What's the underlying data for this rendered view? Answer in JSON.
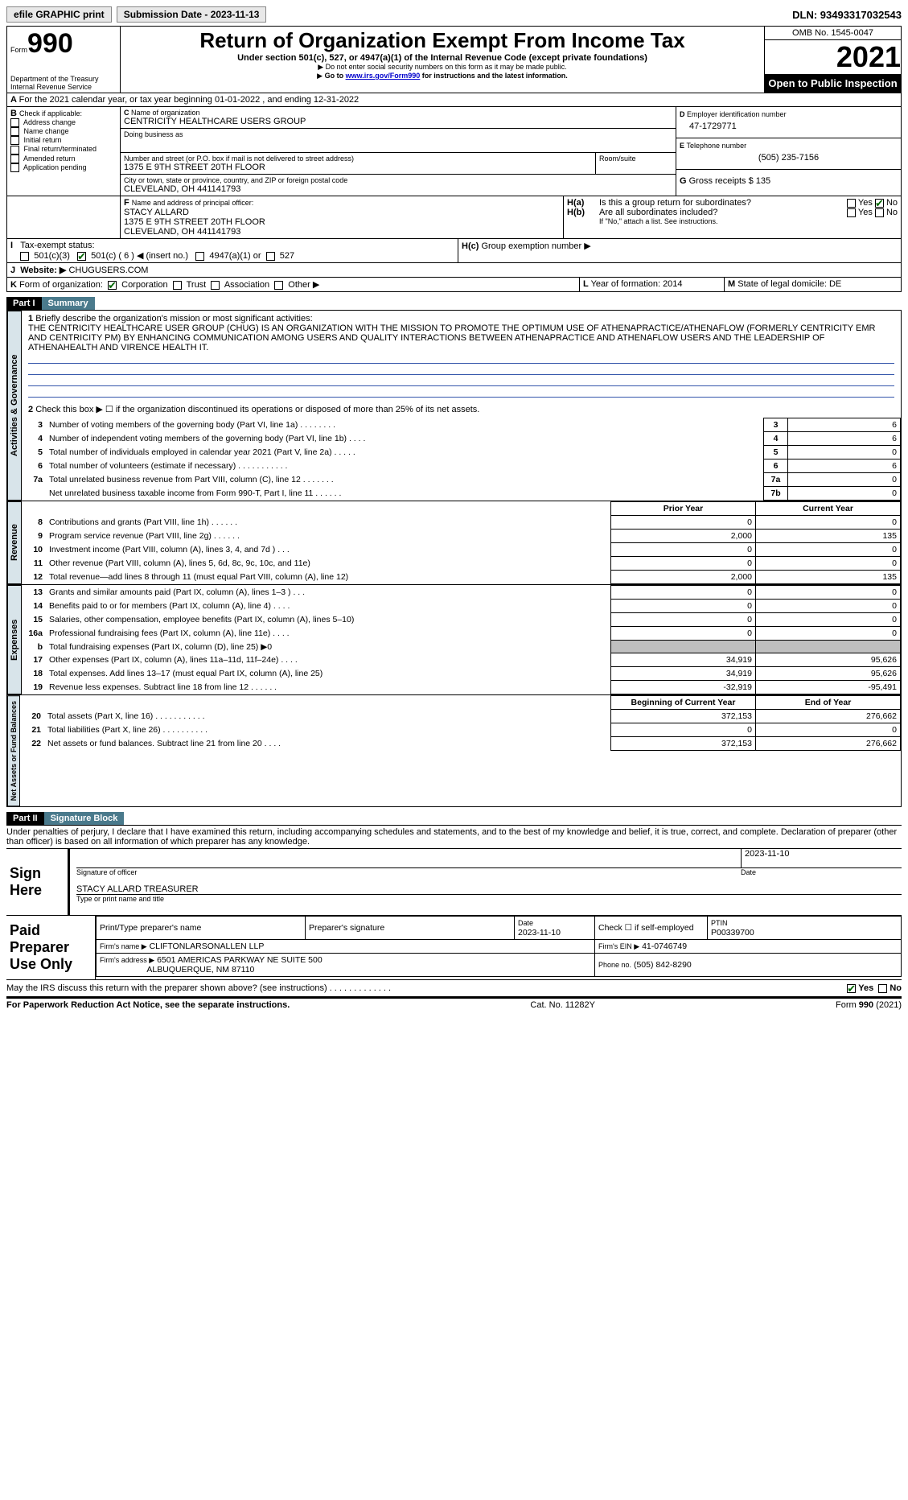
{
  "top": {
    "efile": "efile GRAPHIC print",
    "submission": "Submission Date - 2023-11-13",
    "dln": "DLN: 93493317032543"
  },
  "header": {
    "form_label": "Form",
    "form_no": "990",
    "dept": "Department of the Treasury",
    "irs": "Internal Revenue Service",
    "title": "Return of Organization Exempt From Income Tax",
    "subtitle": "Under section 501(c), 527, or 4947(a)(1) of the Internal Revenue Code (except private foundations)",
    "note1": "Do not enter social security numbers on this form as it may be made public.",
    "note2_pre": "Go to ",
    "note2_link": "www.irs.gov/Form990",
    "note2_post": " for instructions and the latest information.",
    "omb": "OMB No. 1545-0047",
    "year": "2021",
    "inspection": "Open to Public Inspection"
  },
  "A": {
    "line": "For the 2021 calendar year, or tax year beginning 01-01-2022    , and ending 12-31-2022"
  },
  "B": {
    "title": "Check if applicable:",
    "opts": [
      "Address change",
      "Name change",
      "Initial return",
      "Final return/terminated",
      "Amended return",
      "Application pending"
    ]
  },
  "C": {
    "label_name": "Name of organization",
    "name": "CENTRICITY HEALTHCARE USERS GROUP",
    "dba_label": "Doing business as",
    "dba": "",
    "addr_label": "Number and street (or P.O. box if mail is not delivered to street address)",
    "room_label": "Room/suite",
    "addr": "1375 E 9TH STREET 20TH FLOOR",
    "city_label": "City or town, state or province, country, and ZIP or foreign postal code",
    "city": "CLEVELAND, OH  441141793"
  },
  "D": {
    "label": "Employer identification number",
    "val": "47-1729771"
  },
  "E": {
    "label": "Telephone number",
    "val": "(505) 235-7156"
  },
  "G": {
    "label": "Gross receipts $",
    "val": "135"
  },
  "F": {
    "label": "Name and address of principal officer:",
    "name": "STACY ALLARD",
    "addr1": "1375 E 9TH STREET 20TH FLOOR",
    "addr2": "CLEVELAND, OH  441141793"
  },
  "H": {
    "a": "Is this a group return for subordinates?",
    "b": "Are all subordinates included?",
    "b_note": "If \"No,\" attach a list. See instructions.",
    "c": "Group exemption number ▶",
    "yes": "Yes",
    "no": "No"
  },
  "I": {
    "label": "Tax-exempt status:",
    "o1": "501(c)(3)",
    "o2": "501(c) ( 6 ) ◀ (insert no.)",
    "o3": "4947(a)(1) or",
    "o4": "527"
  },
  "J": {
    "label": "Website: ▶",
    "val": "CHUGUSERS.COM"
  },
  "K": {
    "label": "Form of organization:",
    "o1": "Corporation",
    "o2": "Trust",
    "o3": "Association",
    "o4": "Other ▶"
  },
  "L": {
    "label": "Year of formation:",
    "val": "2014"
  },
  "M": {
    "label": "State of legal domicile:",
    "val": "DE"
  },
  "partI": {
    "header": "Part I",
    "title": "Summary",
    "q1_label": "1",
    "q1_text": "Briefly describe the organization's mission or most significant activities:",
    "q1_body": "THE CENTRICITY HEALTHCARE USER GROUP (CHUG) IS AN ORGANIZATION WITH THE MISSION TO PROMOTE THE OPTIMUM USE OF ATHENAPRACTICE/ATHENAFLOW (FORMERLY CENTRICITY EMR AND CENTRICITY PM) BY ENHANCING COMMUNICATION AMONG USERS AND QUALITY INTERACTIONS BETWEEN ATHENAPRACTICE AND ATHENAFLOW USERS AND THE LEADERSHIP OF ATHENAHEALTH AND VIRENCE HEALTH IT.",
    "q2": "Check this box ▶ ☐  if the organization discontinued its operations or disposed of more than 25% of its net assets.",
    "gov_rows": [
      {
        "n": "3",
        "t": "Number of voting members of the governing body (Part VI, line 1a)   .    .    .    .    .    .    .    .",
        "box": "3",
        "v": "6"
      },
      {
        "n": "4",
        "t": "Number of independent voting members of the governing body (Part VI, line 1b)    .    .    .    .",
        "box": "4",
        "v": "6"
      },
      {
        "n": "5",
        "t": "Total number of individuals employed in calendar year 2021 (Part V, line 2a)    .    .    .    .    .",
        "box": "5",
        "v": "0"
      },
      {
        "n": "6",
        "t": "Total number of volunteers (estimate if necessary)    .    .    .    .    .    .    .    .    .    .    .",
        "box": "6",
        "v": "6"
      },
      {
        "n": "7a",
        "t": "Total unrelated business revenue from Part VIII, column (C), line 12    .    .    .    .    .    .    .",
        "box": "7a",
        "v": "0"
      },
      {
        "n": "",
        "t": "Net unrelated business taxable income from Form 990-T, Part I, line 11    .    .    .    .    .    .",
        "box": "7b",
        "v": "0"
      }
    ],
    "col_prior": "Prior Year",
    "col_current": "Current Year",
    "rev_rows": [
      {
        "n": "8",
        "t": "Contributions and grants (Part VIII, line 1h)   .    .    .    .    .    .",
        "p": "0",
        "c": "0"
      },
      {
        "n": "9",
        "t": "Program service revenue (Part VIII, line 2g)   .    .    .    .    .    .",
        "p": "2,000",
        "c": "135"
      },
      {
        "n": "10",
        "t": "Investment income (Part VIII, column (A), lines 3, 4, and 7d )    .    .    .",
        "p": "0",
        "c": "0"
      },
      {
        "n": "11",
        "t": "Other revenue (Part VIII, column (A), lines 5, 6d, 8c, 9c, 10c, and 11e)",
        "p": "0",
        "c": "0"
      },
      {
        "n": "12",
        "t": "Total revenue—add lines 8 through 11 (must equal Part VIII, column (A), line 12)",
        "p": "2,000",
        "c": "135"
      }
    ],
    "exp_rows": [
      {
        "n": "13",
        "t": "Grants and similar amounts paid (Part IX, column (A), lines 1–3 )  .    .    .",
        "p": "0",
        "c": "0"
      },
      {
        "n": "14",
        "t": "Benefits paid to or for members (Part IX, column (A), line 4)   .    .    .    .",
        "p": "0",
        "c": "0"
      },
      {
        "n": "15",
        "t": "Salaries, other compensation, employee benefits (Part IX, column (A), lines 5–10)",
        "p": "0",
        "c": "0"
      },
      {
        "n": "16a",
        "t": "Professional fundraising fees (Part IX, column (A), line 11e)   .    .    .    .",
        "p": "0",
        "c": "0"
      },
      {
        "n": "b",
        "t": "Total fundraising expenses (Part IX, column (D), line 25) ▶0",
        "p": "",
        "c": "",
        "grey": true
      },
      {
        "n": "17",
        "t": "Other expenses (Part IX, column (A), lines 11a–11d, 11f–24e)   .    .    .    .",
        "p": "34,919",
        "c": "95,626"
      },
      {
        "n": "18",
        "t": "Total expenses. Add lines 13–17 (must equal Part IX, column (A), line 25)",
        "p": "34,919",
        "c": "95,626"
      },
      {
        "n": "19",
        "t": "Revenue less expenses. Subtract line 18 from line 12   .    .    .    .    .    .",
        "p": "-32,919",
        "c": "-95,491"
      }
    ],
    "col_begin": "Beginning of Current Year",
    "col_end": "End of Year",
    "na_rows": [
      {
        "n": "20",
        "t": "Total assets (Part X, line 16)   .    .    .    .    .    .    .    .    .    .    .",
        "p": "372,153",
        "c": "276,662"
      },
      {
        "n": "21",
        "t": "Total liabilities (Part X, line 26)   .    .    .    .    .    .    .    .    .    .",
        "p": "0",
        "c": "0"
      },
      {
        "n": "22",
        "t": "Net assets or fund balances. Subtract line 21 from line 20   .    .    .    .",
        "p": "372,153",
        "c": "276,662"
      }
    ],
    "side_gov": "Activities & Governance",
    "side_rev": "Revenue",
    "side_exp": "Expenses",
    "side_na": "Net Assets or Fund Balances"
  },
  "partII": {
    "header": "Part II",
    "title": "Signature Block",
    "decl": "Under penalties of perjury, I declare that I have examined this return, including accompanying schedules and statements, and to the best of my knowledge and belief, it is true, correct, and complete. Declaration of preparer (other than officer) is based on all information of which preparer has any knowledge.",
    "sign_here": "Sign Here",
    "sig_officer": "Signature of officer",
    "sig_date": "Date",
    "sig_date_val": "2023-11-10",
    "sig_name_label": "Type or print name and title",
    "sig_name": "STACY ALLARD  TREASURER",
    "paid": "Paid Preparer Use Only",
    "prep_name_label": "Print/Type preparer's name",
    "prep_sig_label": "Preparer's signature",
    "prep_date_label": "Date",
    "prep_date": "2023-11-10",
    "prep_self": "Check ☐ if self-employed",
    "ptin_label": "PTIN",
    "ptin": "P00339700",
    "firm_name_label": "Firm's name    ▶",
    "firm_name": "CLIFTONLARSONALLEN LLP",
    "firm_ein_label": "Firm's EIN ▶",
    "firm_ein": "41-0746749",
    "firm_addr_label": "Firm's address ▶",
    "firm_addr1": "6501 AMERICAS PARKWAY NE SUITE 500",
    "firm_addr2": "ALBUQUERQUE, NM  87110",
    "firm_phone_label": "Phone no.",
    "firm_phone": "(505) 842-8290",
    "discuss": "May the IRS discuss this return with the preparer shown above? (see instructions)   .    .    .    .    .    .    .    .    .    .    .    .    ."
  },
  "footer": {
    "pra": "For Paperwork Reduction Act Notice, see the separate instructions.",
    "cat": "Cat. No. 11282Y",
    "form": "Form 990 (2021)"
  }
}
